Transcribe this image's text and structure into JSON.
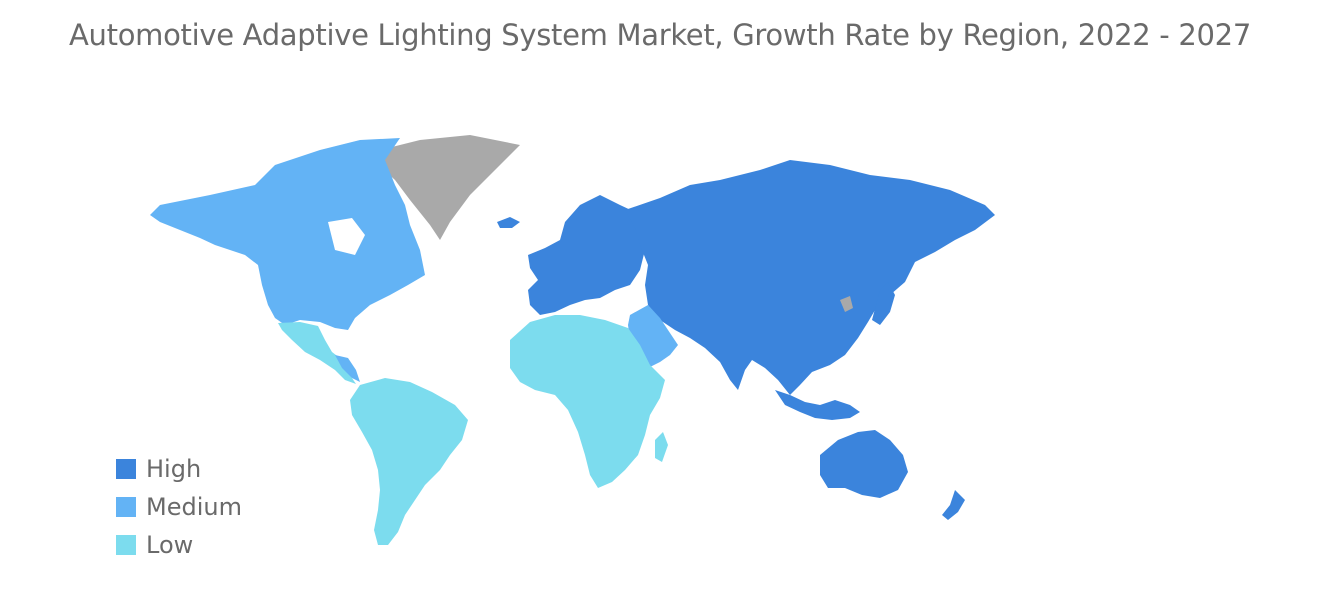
{
  "title": "Automotive Adaptive Lighting System Market, Growth Rate by Region, 2022 - 2027",
  "colors": {
    "high": "#3b84dc",
    "medium": "#63b3f5",
    "low": "#7cdcee",
    "no_data": "#a9a9a9"
  },
  "legend": [
    {
      "label": "High",
      "color": "#3b84dc"
    },
    {
      "label": "Medium",
      "color": "#63b3f5"
    },
    {
      "label": "Low",
      "color": "#7cdcee"
    }
  ],
  "regions": [
    {
      "name": "North America",
      "level": "Medium"
    },
    {
      "name": "Europe",
      "level": "High"
    },
    {
      "name": "Asia-Pacific",
      "level": "High"
    },
    {
      "name": "South America",
      "level": "Low"
    },
    {
      "name": "Middle East",
      "level": "Medium"
    },
    {
      "name": "Africa",
      "level": "Low"
    }
  ]
}
